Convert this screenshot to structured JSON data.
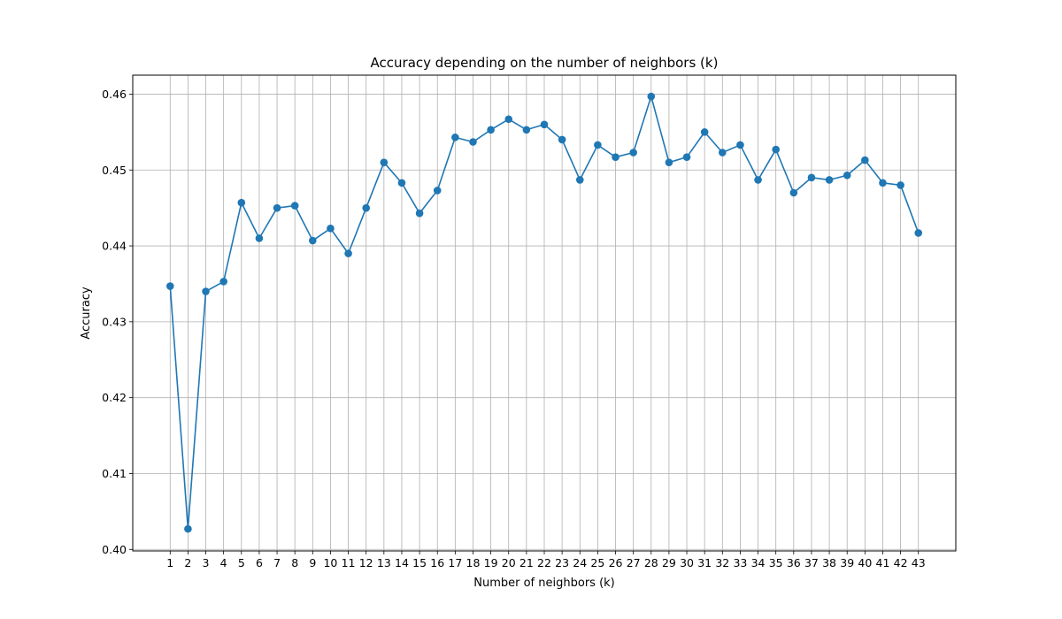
{
  "chart_data": {
    "type": "line",
    "title": "Accuracy depending on the number of neighbors (k)",
    "xlabel": "Number of neighbors (k)",
    "ylabel": "Accuracy",
    "x": [
      1,
      2,
      3,
      4,
      5,
      6,
      7,
      8,
      9,
      10,
      11,
      12,
      13,
      14,
      15,
      16,
      17,
      18,
      19,
      20,
      21,
      22,
      23,
      24,
      25,
      26,
      27,
      28,
      29,
      30,
      31,
      32,
      33,
      34,
      35,
      36,
      37,
      38,
      39,
      40,
      41,
      42,
      43
    ],
    "y_ticks": [
      "0.40",
      "0.41",
      "0.42",
      "0.43",
      "0.44",
      "0.45",
      "0.46"
    ],
    "ylim": [
      0.3998,
      0.4625
    ],
    "xlim": [
      -1.1,
      45.1
    ],
    "grid": true,
    "marker": "circle",
    "series": [
      {
        "color": "#1f77b4",
        "values": [
          0.4347,
          0.4027,
          0.434,
          0.4353,
          0.4457,
          0.441,
          0.445,
          0.4453,
          0.4407,
          0.4423,
          0.439,
          0.445,
          0.451,
          0.4483,
          0.4443,
          0.4473,
          0.4543,
          0.4537,
          0.4553,
          0.4567,
          0.4553,
          0.456,
          0.454,
          0.4487,
          0.4533,
          0.4517,
          0.4523,
          0.4597,
          0.451,
          0.4517,
          0.455,
          0.4523,
          0.4533,
          0.4487,
          0.4527,
          0.447,
          0.449,
          0.4487,
          0.4493,
          0.4513,
          0.4483,
          0.448,
          0.4417
        ]
      }
    ]
  }
}
